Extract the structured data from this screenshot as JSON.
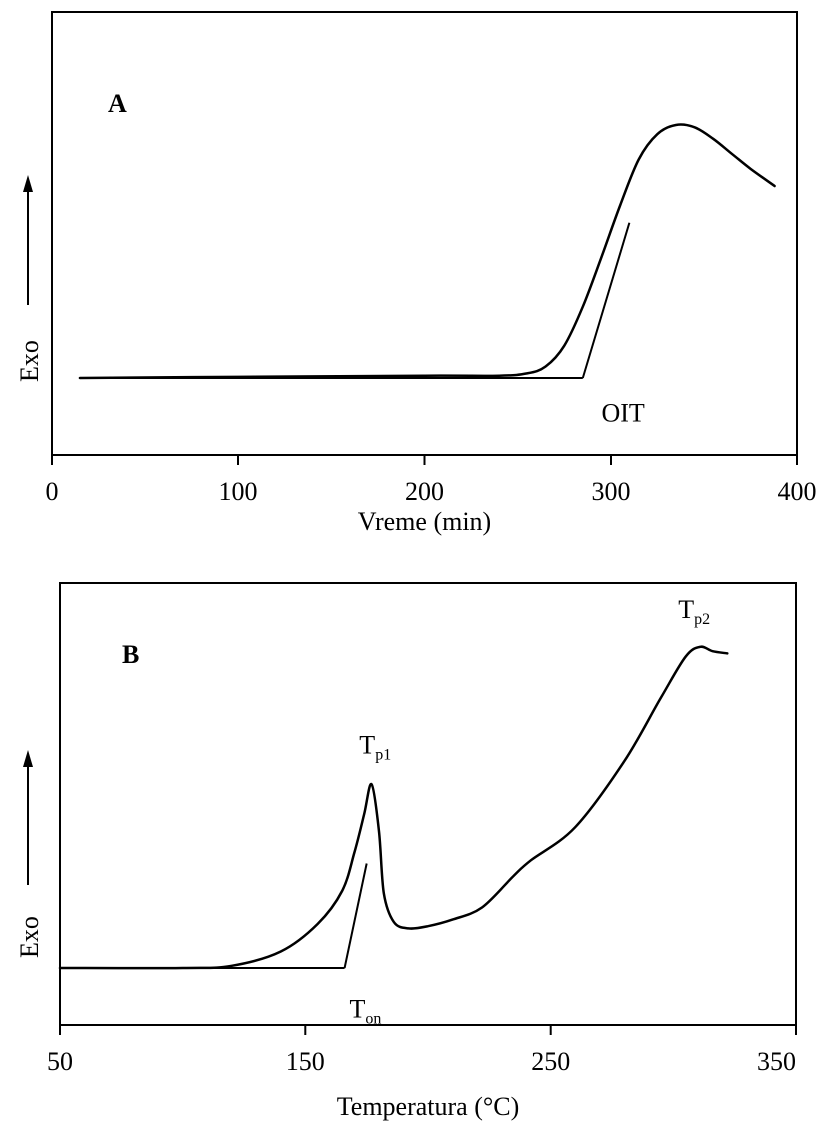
{
  "chart_data": [
    {
      "type": "line",
      "panel_label": "A",
      "xlabel": "Vreme (min)",
      "ylabel": "Exo",
      "xlim": [
        0,
        400
      ],
      "x_ticks": [
        "0",
        "100",
        "200",
        "300",
        "400"
      ],
      "grid": false,
      "series": [
        {
          "x": [
            15,
            100,
            200,
            240,
            255,
            265,
            275,
            285,
            295,
            305,
            315,
            325,
            335,
            345,
            355,
            365,
            375,
            388
          ],
          "y": [
            0.0,
            0.01,
            0.02,
            0.02,
            0.04,
            0.1,
            0.28,
            0.62,
            1.05,
            1.5,
            1.9,
            2.12,
            2.2,
            2.18,
            2.08,
            1.95,
            1.82,
            1.67
          ]
        }
      ],
      "tangent_lines": [
        {
          "x": [
            15,
            285
          ],
          "y": [
            0.0,
            0.0
          ]
        },
        {
          "x": [
            285,
            310
          ],
          "y": [
            0.0,
            1.35
          ]
        }
      ],
      "annotations": [
        {
          "text": "OIT",
          "x": 295,
          "y": -0.38
        }
      ]
    },
    {
      "type": "line",
      "panel_label": "B",
      "xlabel": "Temperatura (°C)",
      "ylabel": "Exo",
      "xlim": [
        50,
        350
      ],
      "x_ticks": [
        "50",
        "150",
        "250",
        "350"
      ],
      "grid": false,
      "series": [
        {
          "x": [
            50,
            100,
            120,
            140,
            155,
            165,
            170,
            174,
            177,
            180,
            182,
            186,
            192,
            200,
            210,
            222,
            235,
            242,
            260,
            280,
            295,
            305,
            311,
            316,
            322
          ],
          "y": [
            0.0,
            0.0,
            0.02,
            0.15,
            0.4,
            0.7,
            1.05,
            1.4,
            1.67,
            1.25,
            0.68,
            0.42,
            0.36,
            0.38,
            0.44,
            0.55,
            0.84,
            0.98,
            1.28,
            1.88,
            2.46,
            2.83,
            2.92,
            2.88,
            2.86
          ]
        }
      ],
      "tangent_lines": [
        {
          "x": [
            50,
            166
          ],
          "y": [
            0.0,
            0.0
          ]
        },
        {
          "x": [
            166,
            175
          ],
          "y": [
            0.0,
            0.95
          ]
        }
      ],
      "annotations": [
        {
          "text": "T",
          "sub": "p1",
          "x": 172,
          "y": 1.95
        },
        {
          "text": "T",
          "sub": "p2",
          "x": 302,
          "y": 3.18
        },
        {
          "text": "T",
          "sub": "on",
          "x": 168,
          "y": -0.45
        }
      ]
    }
  ]
}
